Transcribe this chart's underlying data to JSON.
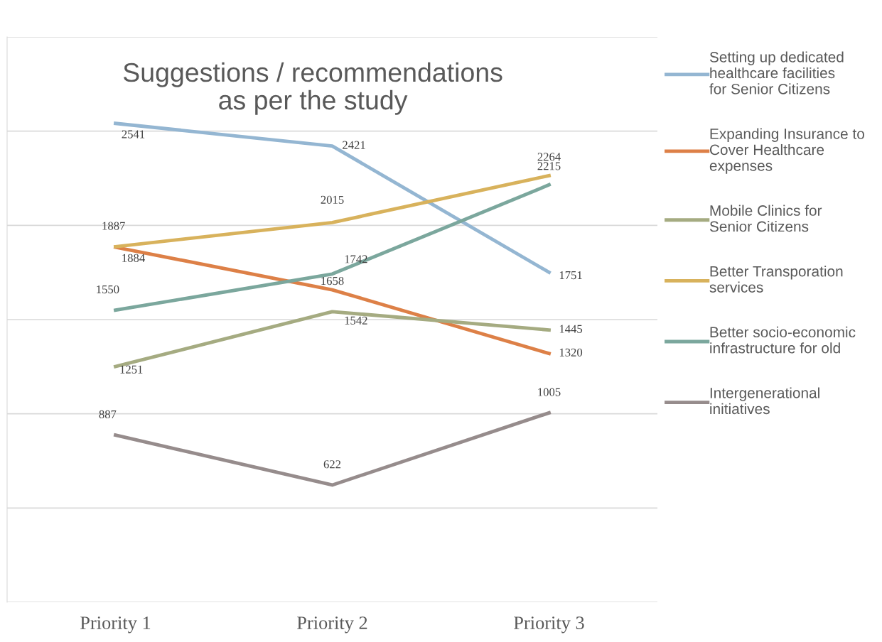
{
  "chart_data": {
    "type": "line",
    "title": "Suggestions / recommendations\nas per the study",
    "categories": [
      "Priority 1",
      "Priority 2",
      "Priority 3"
    ],
    "series": [
      {
        "name": "Setting up dedicated healthcare facilities for Senior Citizens",
        "color": "#94b6d2",
        "values": [
          2541,
          2421,
          1751
        ]
      },
      {
        "name": "Expanding Insurance to Cover Healthcare expenses",
        "color": "#dd8047",
        "values": [
          1884,
          1658,
          1320
        ]
      },
      {
        "name": "Mobile Clinics for Senior Citizens",
        "color": "#a5ab81",
        "values": [
          1251,
          1542,
          1445
        ]
      },
      {
        "name": "Better Transporation services",
        "color": "#d8b25c",
        "values": [
          1887,
          2015,
          2264
        ]
      },
      {
        "name": "Better socio-economic infrastructure for old",
        "color": "#7ba79d",
        "values": [
          1550,
          1742,
          2215
        ]
      },
      {
        "name": "Intergenerational initiatives",
        "color": "#968c8c",
        "values": [
          887,
          622,
          1005
        ]
      }
    ],
    "ylim": [
      0,
      3000
    ],
    "yticks": [
      {
        "value": 0,
        "label": null
      },
      {
        "value": 500,
        "label": null
      },
      {
        "value": 1000,
        "label": null
      },
      {
        "value": 1500,
        "label": null
      },
      {
        "value": 2000,
        "label": null
      },
      {
        "value": 2500,
        "label": null
      },
      {
        "value": 3000,
        "label": null
      }
    ],
    "tick_labels": "x",
    "grid": "y",
    "legend": "right",
    "data_labels": true,
    "marker": "none",
    "line_style": "solid"
  }
}
